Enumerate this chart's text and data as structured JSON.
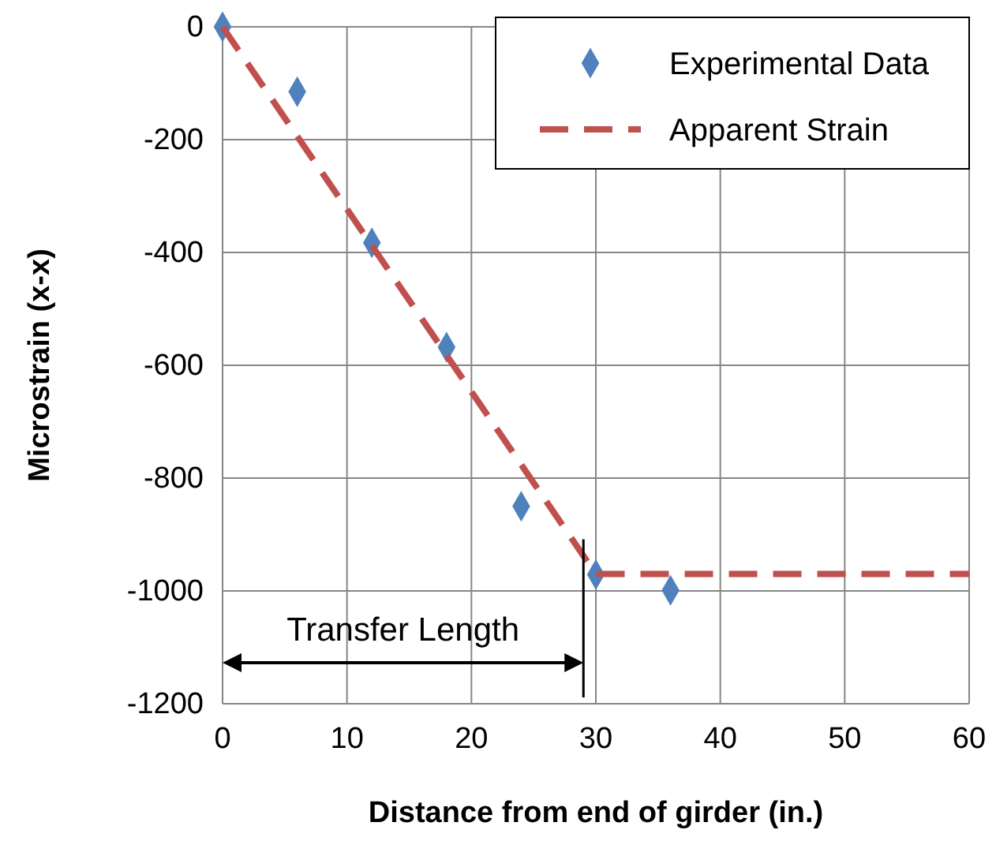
{
  "chart_data": {
    "type": "scatter",
    "xlabel": "Distance from end of girder  (in.)",
    "ylabel": "Microstrain (x-x)",
    "xlim": [
      0,
      60
    ],
    "xticks": [
      0,
      10,
      20,
      30,
      40,
      50,
      60
    ],
    "ylim": [
      -1200,
      0
    ],
    "yticks": [
      -1200,
      -1000,
      -800,
      -600,
      -400,
      -200,
      0
    ],
    "grid": true,
    "legend": "top right",
    "series": [
      {
        "name": "Experimental Data",
        "marker": "diamond",
        "color": "#4f81bd",
        "x": [
          0,
          6,
          12,
          18,
          24,
          30,
          36
        ],
        "values": [
          0,
          -115,
          -383,
          -568,
          -850,
          -971,
          -999
        ]
      },
      {
        "name": "Apparent Strain",
        "type": "line",
        "line_style": "dashed",
        "color": "#c0504d",
        "x": [
          0,
          30,
          60
        ],
        "values": [
          0,
          -970,
          -970
        ]
      }
    ],
    "ref_lines": [
      {
        "axis": "x",
        "value": 29,
        "color": "#000000"
      }
    ],
    "annotations": [
      "Transfer Length"
    ]
  }
}
